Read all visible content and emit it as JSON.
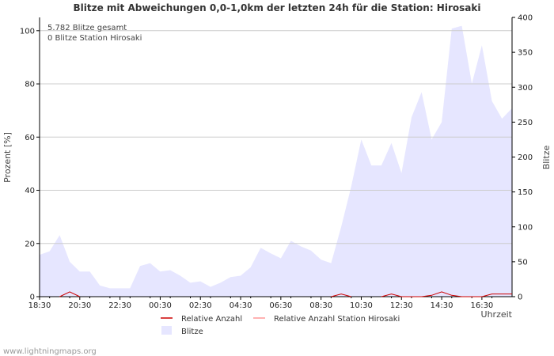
{
  "chart_data": {
    "type": "area",
    "title": "Blitze mit Abweichungen 0,0-1,0km der letzten 24h für die Station: Hirosaki",
    "info_lines": [
      "5.782 Blitze gesamt",
      "0 Blitze Station Hirosaki"
    ],
    "ylabel_left": "Prozent   [%]",
    "ylabel_right": "Blitze",
    "xlabel": "Uhrzeit",
    "ylim_left": [
      0,
      105
    ],
    "ylim_right": [
      0,
      400
    ],
    "yticks_left": [
      "0",
      "20",
      "40",
      "60",
      "80",
      "100"
    ],
    "yticks_right": [
      "0",
      "50",
      "100",
      "150",
      "200",
      "250",
      "300",
      "350",
      "400"
    ],
    "xlim_hours": [
      0,
      23.5
    ],
    "xticks": [
      "18:30",
      "20:30",
      "22:30",
      "00:30",
      "02:30",
      "04:30",
      "06:30",
      "08:30",
      "10:30",
      "12:30",
      "14:30",
      "16:30"
    ],
    "blitze_series": {
      "name": "Blitze",
      "x_hours": [
        0,
        0.5,
        1,
        1.5,
        2,
        2.5,
        3,
        3.5,
        4,
        4.5,
        5,
        5.5,
        6,
        6.5,
        7,
        7.5,
        8,
        8.5,
        9,
        9.5,
        10,
        10.5,
        11,
        11.5,
        12,
        12.5,
        13,
        13.5,
        14,
        14.5,
        15,
        15.5,
        16,
        16.5,
        17,
        17.5,
        18,
        18.5,
        19,
        19.5,
        20,
        20.5,
        21,
        21.5,
        22,
        22.5,
        23,
        23.5
      ],
      "values": [
        60,
        65,
        88,
        50,
        36,
        36,
        16,
        12,
        12,
        12,
        44,
        48,
        36,
        38,
        30,
        20,
        22,
        14,
        20,
        28,
        30,
        42,
        70,
        62,
        55,
        80,
        72,
        66,
        53,
        48,
        100,
        158,
        225,
        188,
        188,
        220,
        177,
        257,
        293,
        225,
        250,
        384,
        388,
        305,
        360,
        280,
        255,
        270
      ]
    },
    "relative_series": {
      "name": "Relative Anzahl",
      "x_hours": [
        1,
        1.5,
        2,
        14.5,
        15,
        15.5,
        17,
        17.5,
        18,
        19,
        19.5,
        20,
        20.5,
        21,
        22,
        22.5,
        23.5
      ],
      "values": [
        0,
        1.8,
        0,
        0,
        1,
        0,
        0,
        1,
        0,
        0,
        0.5,
        1.8,
        0.5,
        0,
        0,
        1,
        1
      ]
    },
    "relative_station_series": {
      "name": "Relative Anzahl Station Hirosaki",
      "values": []
    },
    "colors": {
      "blitze_fill": "#e6e6ff",
      "relative": "#cc0000",
      "relative_station": "#ff9999",
      "grid": "#cccccc",
      "axis": "#000000"
    },
    "legend": [
      "Relative Anzahl",
      "Relative Anzahl Station Hirosaki",
      "Blitze"
    ],
    "legend_position": "bottom"
  },
  "footer": "www.lightningmaps.org"
}
